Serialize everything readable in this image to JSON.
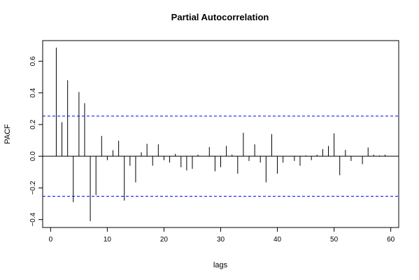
{
  "chart_data": {
    "type": "bar",
    "title": "Partial Autocorrelation",
    "xlabel": "lags",
    "ylabel": "PACF",
    "xlim": [
      -1.4,
      61.4
    ],
    "ylim": [
      -0.45,
      0.73
    ],
    "x_ticks": [
      0,
      10,
      20,
      30,
      40,
      50,
      60
    ],
    "y_ticks": [
      -0.4,
      -0.2,
      0.0,
      0.2,
      0.4,
      0.6
    ],
    "y_tick_labels": [
      "−0.4",
      "−0.2",
      "0.0",
      "0.2",
      "0.4",
      "0.6"
    ],
    "grid": false,
    "confidence_band": 0.253,
    "colors": {
      "bars": "#000000",
      "band": "#0000ff",
      "frame": "#000000"
    },
    "series": [
      {
        "lags": [
          1,
          2,
          3,
          4,
          5,
          6,
          7,
          8,
          9,
          10,
          11,
          12,
          13,
          14,
          15,
          16,
          17,
          18,
          19,
          20,
          21,
          22,
          23,
          24,
          25,
          26,
          27,
          28,
          29,
          30,
          31,
          32,
          33,
          34,
          35,
          36,
          37,
          38,
          39,
          40,
          41,
          42,
          43,
          44,
          45,
          46,
          47,
          48,
          49,
          50,
          51,
          52,
          53,
          54,
          55,
          56,
          57,
          58,
          59
        ],
        "values": [
          0.685,
          0.215,
          0.48,
          -0.29,
          0.405,
          0.335,
          -0.41,
          -0.245,
          0.128,
          -0.025,
          0.038,
          0.098,
          -0.28,
          -0.06,
          -0.165,
          0.025,
          0.078,
          -0.06,
          0.075,
          -0.025,
          -0.04,
          0.015,
          -0.07,
          -0.09,
          -0.08,
          0.01,
          0.0,
          0.058,
          -0.095,
          -0.07,
          0.065,
          0.01,
          -0.11,
          0.148,
          -0.03,
          0.075,
          -0.04,
          -0.165,
          0.14,
          -0.11,
          -0.04,
          0.0,
          -0.03,
          -0.06,
          0.005,
          -0.025,
          0.01,
          0.045,
          0.065,
          0.145,
          -0.12,
          0.04,
          -0.03,
          0.0,
          -0.05,
          0.055,
          0.01,
          0.005,
          0.01
        ]
      }
    ]
  }
}
